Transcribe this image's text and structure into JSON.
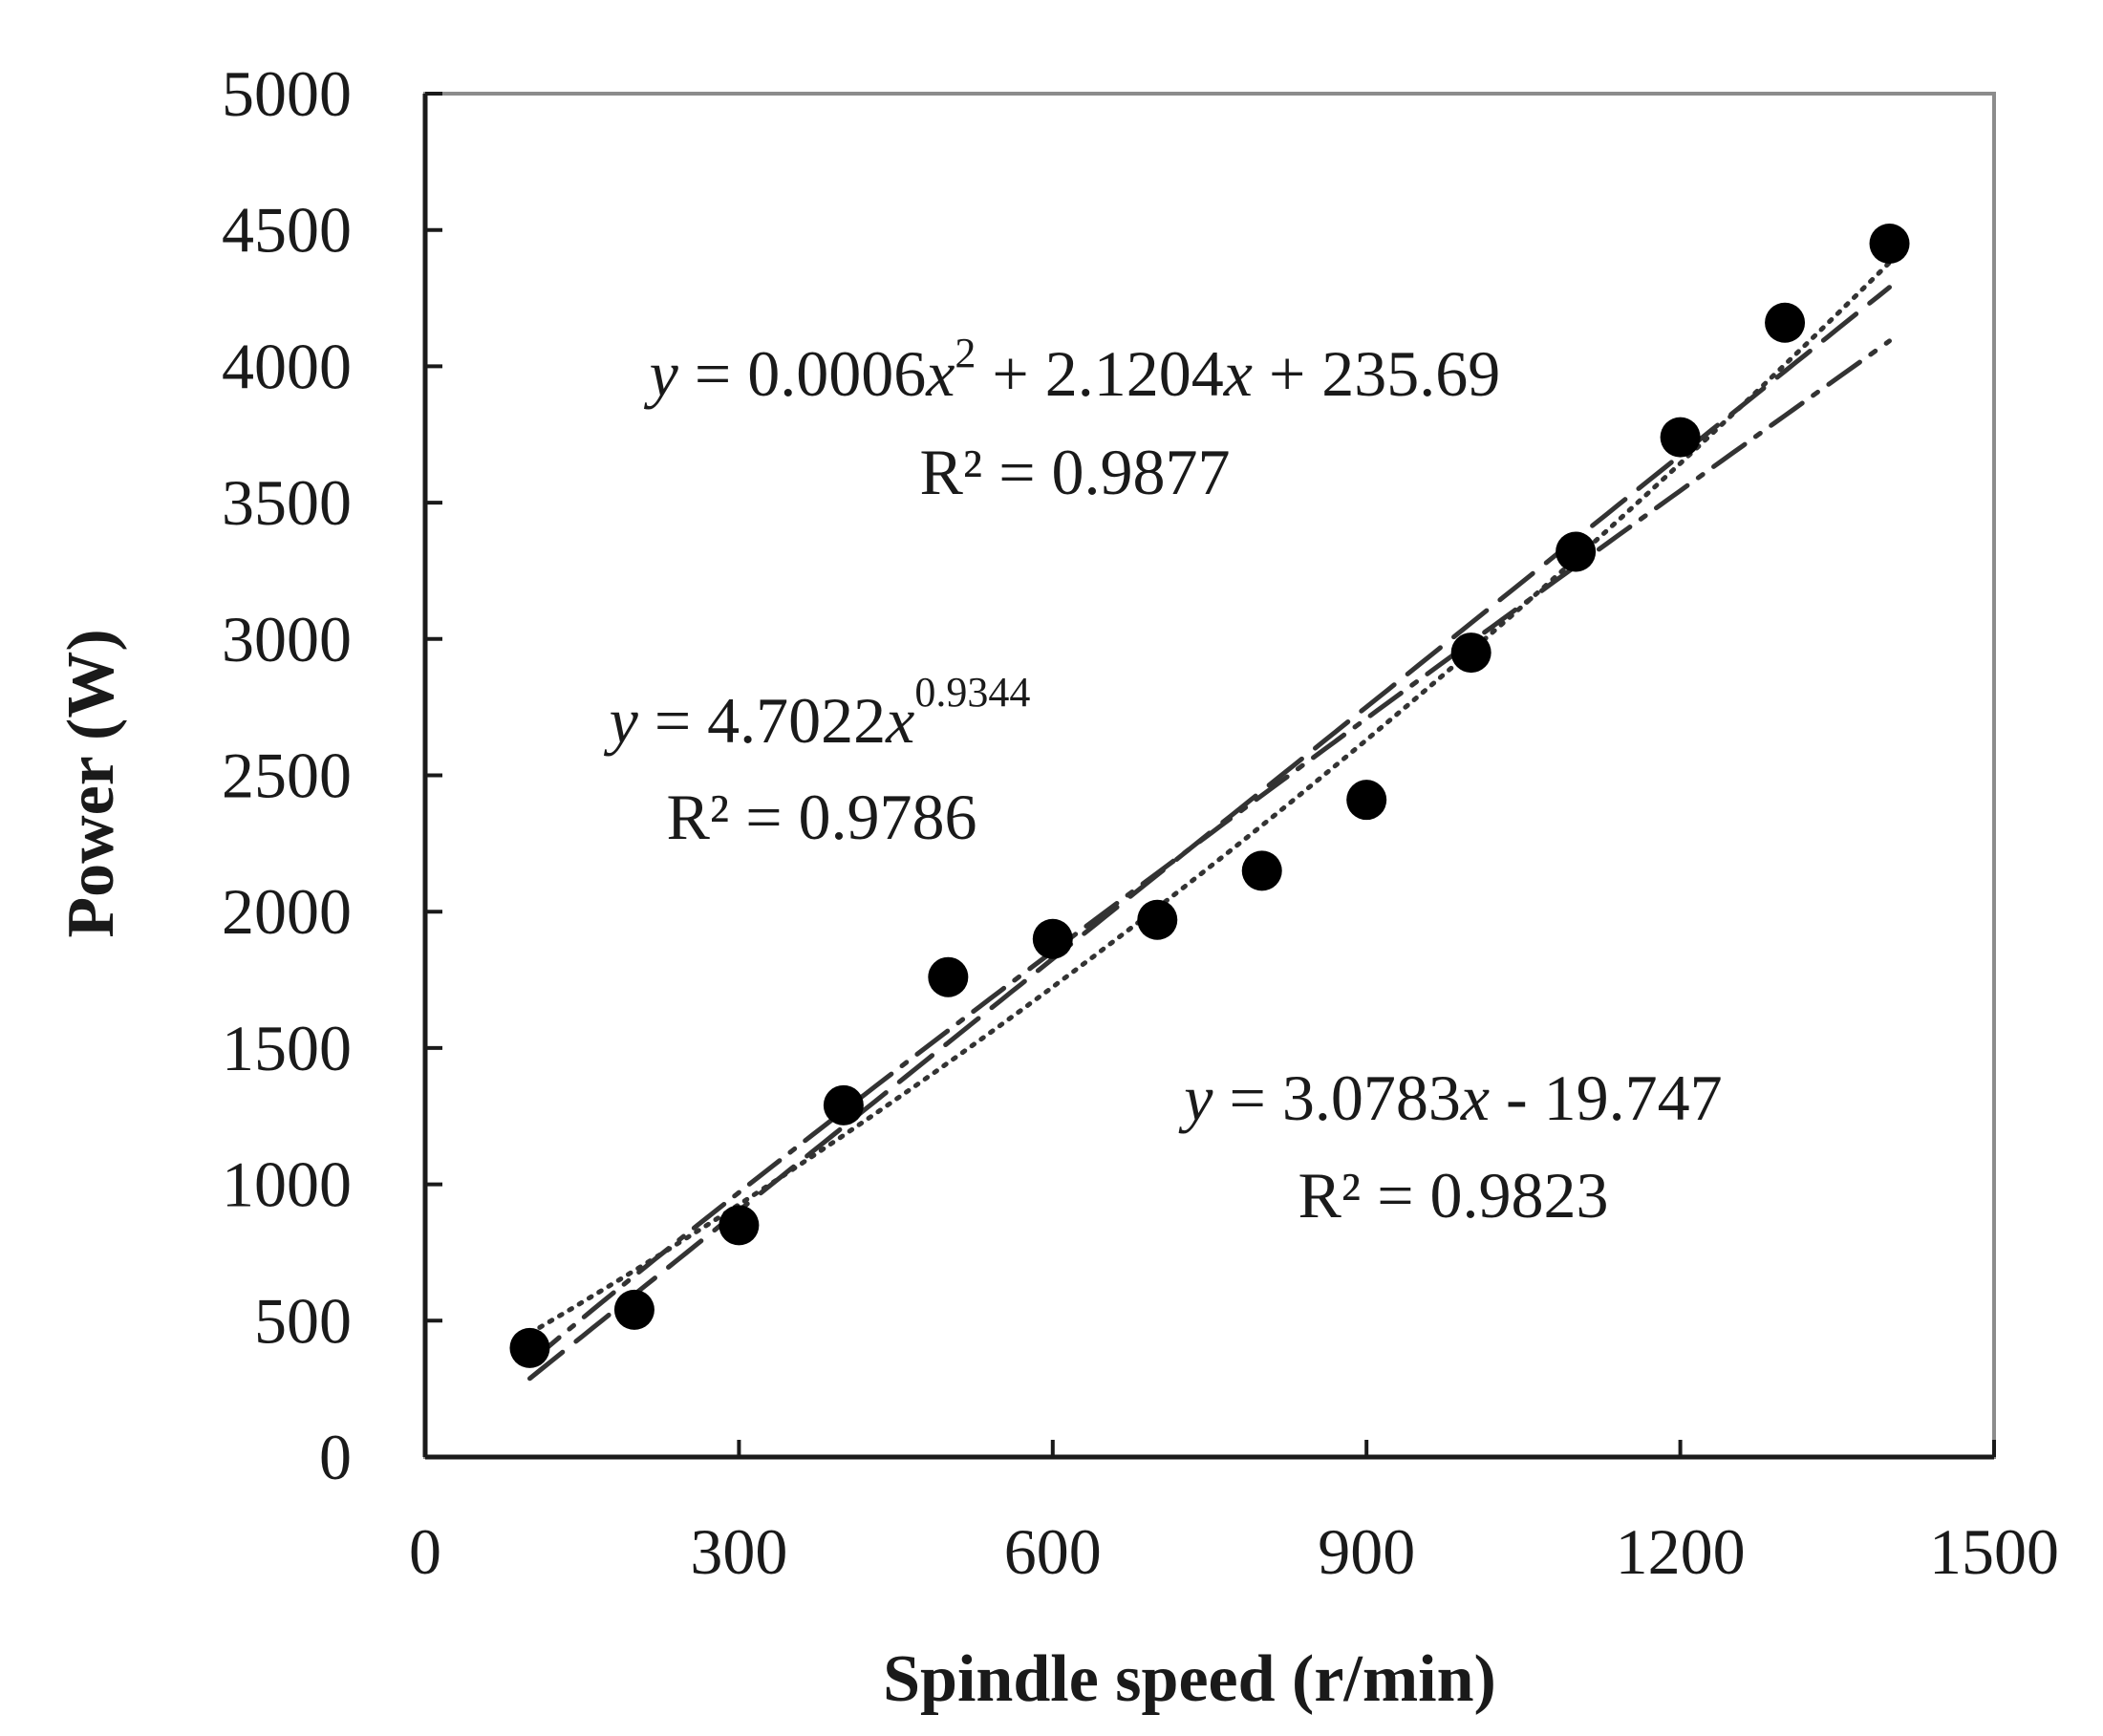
{
  "chart_data": {
    "type": "scatter",
    "title": "",
    "xlabel": "Spindle speed (r/min)",
    "ylabel": "Power (W)",
    "xlim": [
      0,
      1500
    ],
    "ylim": [
      0,
      5000
    ],
    "xticks": [
      0,
      300,
      600,
      900,
      1200,
      1500
    ],
    "yticks": [
      0,
      500,
      1000,
      1500,
      2000,
      2500,
      3000,
      3500,
      4000,
      4500,
      5000
    ],
    "xtick_labels": [
      "0",
      "300",
      "600",
      "900",
      "1200",
      "1500"
    ],
    "ytick_labels": [
      "0",
      "500",
      "1000",
      "1500",
      "2000",
      "2500",
      "3000",
      "3500",
      "4000",
      "4500",
      "5000"
    ],
    "grid": false,
    "series": [
      {
        "marker": "filled-circle",
        "color": "#000000",
        "x": [
          100,
          200,
          300,
          400,
          500,
          600,
          700,
          800,
          900,
          1000,
          1100,
          1200,
          1300,
          1400
        ],
        "y": [
          400,
          540,
          850,
          1290,
          1760,
          1900,
          1970,
          2150,
          2410,
          2950,
          3320,
          3740,
          4160,
          4450
        ]
      }
    ],
    "trendlines": [
      {
        "kind": "polynomial",
        "style": "dotted",
        "coefficients": [
          0.0006,
          2.1204,
          235.69
        ],
        "equation_parts": {
          "y": "y",
          "eq1": " = 0.0006",
          "x": "x",
          "sup": "2",
          "eq2": " + 2.1204",
          "x2": "x",
          "eq3": " + 235.69"
        },
        "r2": "R² = 0.9877"
      },
      {
        "kind": "power",
        "style": "dash-dot",
        "coefficients": [
          4.7022,
          0.9344
        ],
        "equation_parts": {
          "y": "y",
          "eq1": " = 4.7022",
          "x": "x",
          "sup": "0.9344"
        },
        "r2": "R² = 0.9786"
      },
      {
        "kind": "linear",
        "style": "long-dash",
        "coefficients": [
          3.0783,
          -19.747
        ],
        "equation_parts": {
          "y": "y",
          "eq1": " = 3.0783",
          "x": "x",
          "eq2": " - 19.747"
        },
        "r2": "R² = 0.9823"
      }
    ]
  }
}
